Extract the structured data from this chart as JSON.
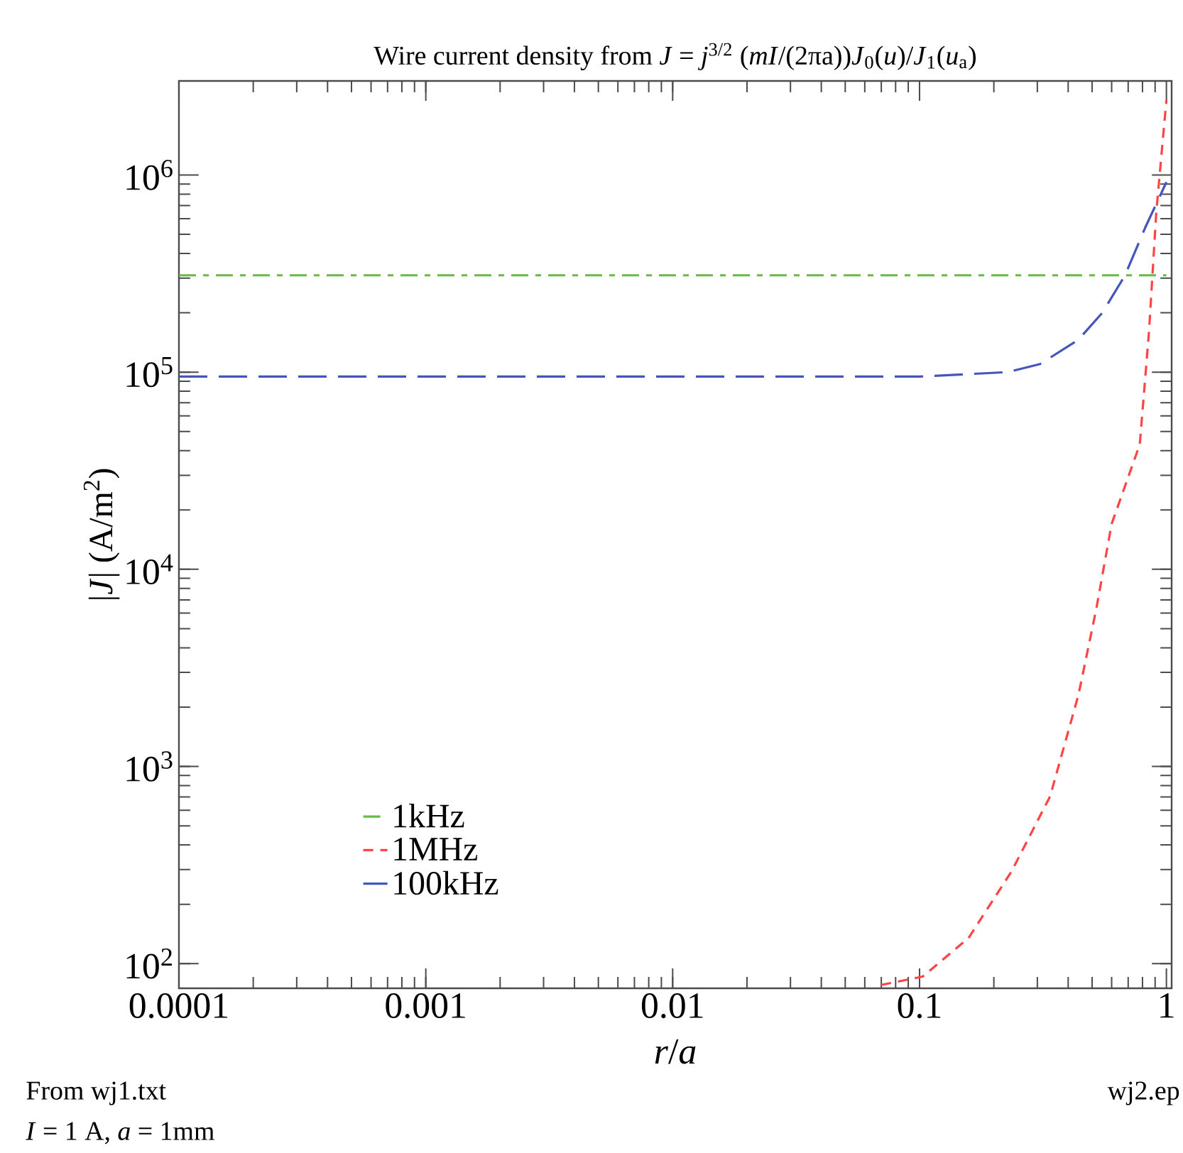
{
  "chart_data": {
    "type": "line",
    "title": "Wire current density from *J* = *j*$^{3/2}$ (*mI*/(2πa))*J*$_{0}$(*u*)/*J*$_{1}$(*u*$_{a}$)",
    "xlabel": "*r*/*a*",
    "ylabel": "|*J*| (A/m$^{2}$)",
    "annotations": [
      "From wj1.txt",
      "*I* = 1 A, *a* = 1mm",
      "wj2.ep"
    ],
    "log": "xy",
    "xlim": [
      0.0001,
      1.05
    ],
    "ylim": [
      75,
      3000000
    ],
    "xticks": [
      0.0001,
      0.001,
      0.01,
      0.1,
      1
    ],
    "yticks": [
      {
        "value": 100,
        "label": "10$^{2}$"
      },
      {
        "value": 1000,
        "label": "10$^{3}$"
      },
      {
        "value": 10000,
        "label": "10$^{4}$"
      },
      {
        "value": 100000,
        "label": "10$^{5}$"
      },
      {
        "value": 1000000,
        "label": "10$^{6}$"
      }
    ],
    "grid": false,
    "legend": "bottom left",
    "series": [
      {
        "name": "1kHz",
        "color": "#66bb44",
        "line_style": "dashdot",
        "x": [
          0.0001,
          0.001,
          0.01,
          0.1,
          1
        ],
        "values": [
          310000,
          310000,
          310000,
          310000,
          310000
        ]
      },
      {
        "name": "1MHz",
        "color": "#ff4444",
        "line_style": "dashed",
        "x": [
          0.07,
          0.103,
          0.158,
          0.236,
          0.338,
          0.44,
          0.52,
          0.6,
          0.78,
          0.85,
          0.91,
          1.0
        ],
        "values": [
          78,
          86,
          135,
          294,
          706,
          2300,
          6300,
          17000,
          43000,
          160000,
          650000,
          2400000
        ]
      },
      {
        "name": "100kHz",
        "color": "#4455bb",
        "line_style": "long dashed",
        "x": [
          0.0001,
          0.001,
          0.01,
          0.1,
          0.227,
          0.308,
          0.44,
          0.55,
          0.68,
          0.82,
          1.0
        ],
        "values": [
          95000,
          95000,
          95000,
          95000,
          100000,
          110000,
          146000,
          200000,
          310000,
          540000,
          920000
        ]
      }
    ]
  }
}
